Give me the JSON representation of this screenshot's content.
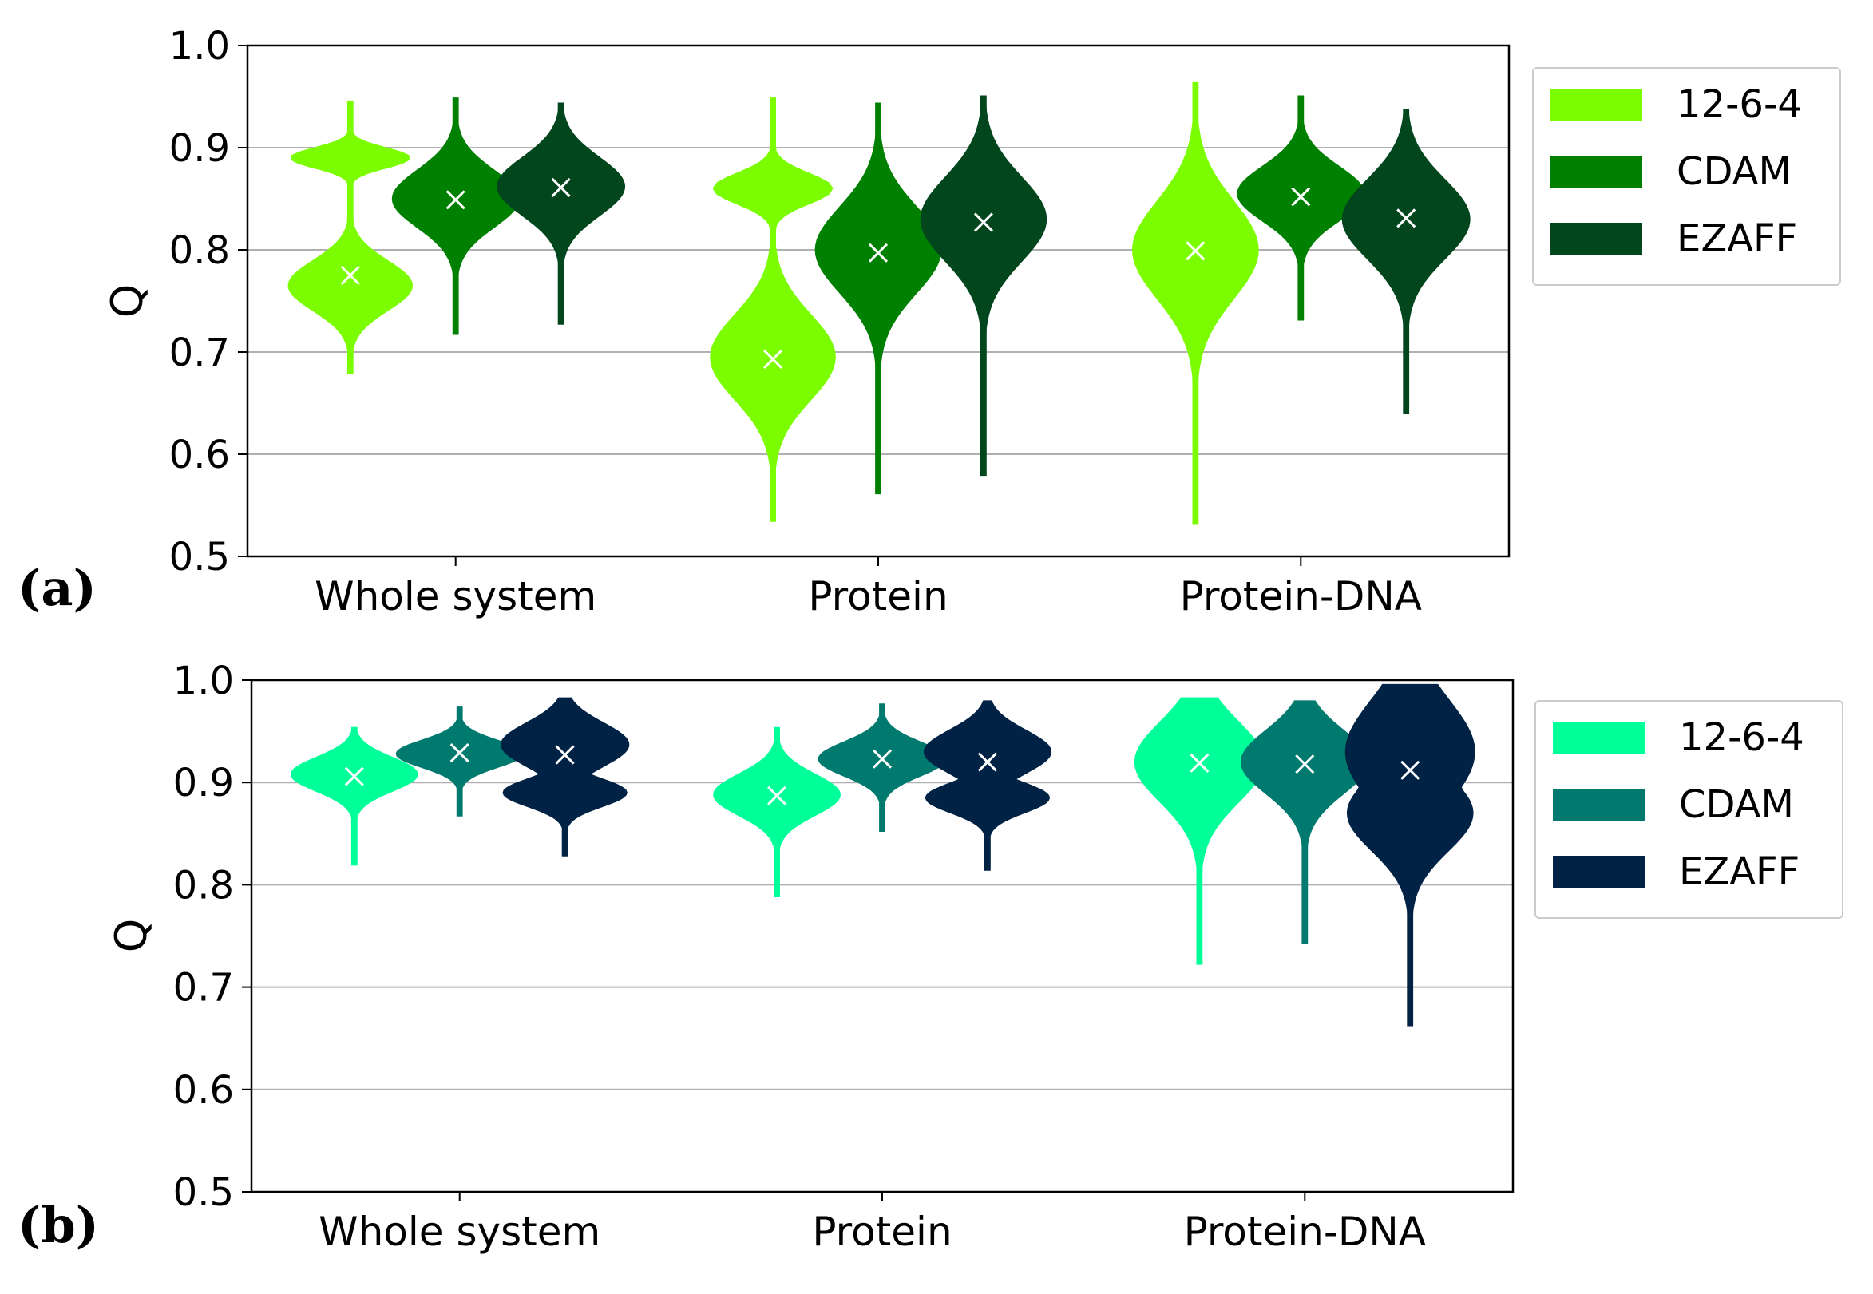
{
  "chart_data": [
    {
      "type": "violin",
      "panel_label": "(a)",
      "ylabel": "Q",
      "ylim": [
        0.5,
        1.0
      ],
      "yticks": [
        "0.5",
        "0.6",
        "0.7",
        "0.8",
        "0.9",
        "1.0"
      ],
      "grid": "horizontal",
      "legend_position": "outside-right-top",
      "categories": [
        "Whole system",
        "Protein",
        "Protein-DNA"
      ],
      "series": [
        {
          "name": "12-6-4",
          "color": "#7cfc00",
          "violins": [
            {
              "min": 0.68,
              "max": 0.945,
              "median": 0.775,
              "mode": [
                [
                  0.765,
                  0.18
                ],
                [
                  0.89,
                  0.07
                ]
              ]
            },
            {
              "min": 0.535,
              "max": 0.948,
              "median": 0.693,
              "mode": [
                [
                  0.695,
                  0.2
                ],
                [
                  0.86,
                  0.07
                ]
              ]
            },
            {
              "min": 0.532,
              "max": 0.963,
              "median": 0.799,
              "mode": [
                [
                  0.8,
                  0.22
                ]
              ]
            }
          ]
        },
        {
          "name": "CDAM",
          "color": "#008000",
          "violins": [
            {
              "min": 0.718,
              "max": 0.948,
              "median": 0.849,
              "mode": [
                [
                  0.85,
                  0.24
                ]
              ]
            },
            {
              "min": 0.562,
              "max": 0.943,
              "median": 0.797,
              "mode": [
                [
                  0.8,
                  0.22
                ]
              ]
            },
            {
              "min": 0.732,
              "max": 0.95,
              "median": 0.852,
              "mode": [
                [
                  0.855,
                  0.24
                ]
              ]
            }
          ]
        },
        {
          "name": "EZAFF",
          "color": "#02461e",
          "violins": [
            {
              "min": 0.728,
              "max": 0.943,
              "median": 0.861,
              "mode": [
                [
                  0.862,
                  0.26
                ]
              ]
            },
            {
              "min": 0.58,
              "max": 0.95,
              "median": 0.827,
              "mode": [
                [
                  0.83,
                  0.22
                ]
              ]
            },
            {
              "min": 0.641,
              "max": 0.937,
              "median": 0.831,
              "mode": [
                [
                  0.83,
                  0.26
                ]
              ]
            }
          ]
        }
      ]
    },
    {
      "type": "violin",
      "panel_label": "(b)",
      "ylabel": "Q",
      "ylim": [
        0.5,
        1.0
      ],
      "yticks": [
        "0.5",
        "0.6",
        "0.7",
        "0.8",
        "0.9",
        "1.0"
      ],
      "grid": "horizontal",
      "legend_position": "outside-right-top",
      "categories": [
        "Whole system",
        "Protein",
        "Protein-DNA"
      ],
      "series": [
        {
          "name": "12-6-4",
          "color": "#00ff99",
          "violins": [
            {
              "min": 0.82,
              "max": 0.953,
              "median": 0.906,
              "mode": [
                [
                  0.908,
                  0.24
                ]
              ]
            },
            {
              "min": 0.789,
              "max": 0.953,
              "median": 0.887,
              "mode": [
                [
                  0.888,
                  0.24
                ]
              ]
            },
            {
              "min": 0.723,
              "max": 0.982,
              "median": 0.919,
              "mode": [
                [
                  0.92,
                  0.3
                ]
              ]
            }
          ]
        },
        {
          "name": "CDAM",
          "color": "#007a6e",
          "violins": [
            {
              "min": 0.868,
              "max": 0.973,
              "median": 0.929,
              "mode": [
                [
                  0.928,
                  0.24
                ]
              ]
            },
            {
              "min": 0.853,
              "max": 0.976,
              "median": 0.923,
              "mode": [
                [
                  0.923,
                  0.26
                ]
              ]
            },
            {
              "min": 0.743,
              "max": 0.979,
              "median": 0.918,
              "mode": [
                [
                  0.92,
                  0.26
                ]
              ]
            }
          ]
        },
        {
          "name": "EZAFF",
          "color": "#002244",
          "violins": [
            {
              "min": 0.829,
              "max": 0.982,
              "median": 0.927,
              "mode": [
                [
                  0.937,
                  0.27
                ],
                [
                  0.89,
                  0.17
                ]
              ]
            },
            {
              "min": 0.815,
              "max": 0.979,
              "median": 0.92,
              "mode": [
                [
                  0.93,
                  0.25
                ],
                [
                  0.885,
                  0.17
                ]
              ]
            },
            {
              "min": 0.663,
              "max": 0.995,
              "median": 0.912,
              "mode": [
                [
                  0.93,
                  0.3
                ],
                [
                  0.87,
                  0.22
                ]
              ]
            }
          ]
        }
      ]
    }
  ]
}
